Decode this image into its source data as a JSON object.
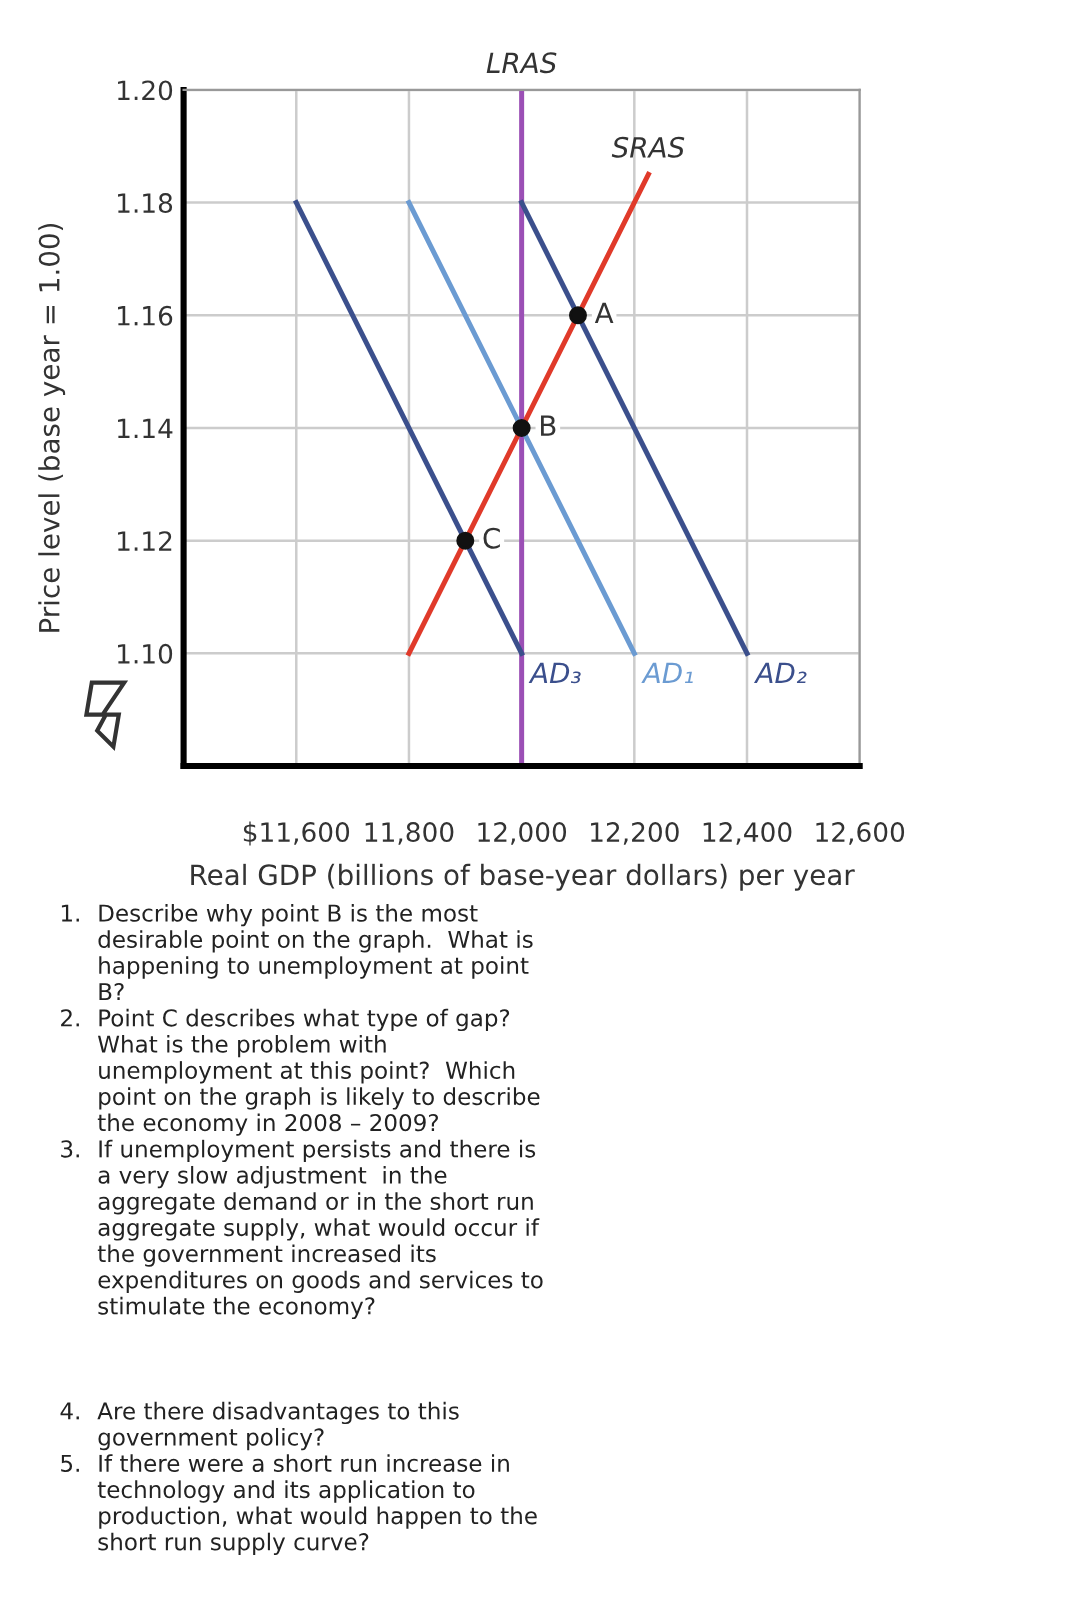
{
  "chart_data": {
    "type": "line",
    "xlabel": "Real GDP (billions of base-year dollars) per year",
    "ylabel": "Price level (base year = 1.00)",
    "xlim": [
      11400,
      12600
    ],
    "ylim": [
      1.08,
      1.2
    ],
    "xticks": [
      {
        "value": 11600,
        "label": "$11,600"
      },
      {
        "value": 11800,
        "label": "11,800"
      },
      {
        "value": 12000,
        "label": "12,000"
      },
      {
        "value": 12200,
        "label": "12,200"
      },
      {
        "value": 12400,
        "label": "12,400"
      },
      {
        "value": 12600,
        "label": "12,600"
      }
    ],
    "yticks": [
      {
        "value": 1.1,
        "label": "1.10"
      },
      1.12,
      1.14,
      1.16,
      1.18,
      {
        "value": 1.2,
        "label": "1.20"
      }
    ],
    "grid": true,
    "legend": false,
    "series": [
      {
        "name": "AD₃",
        "color": "#3b4f8c",
        "x": [
          11600,
          12000
        ],
        "values": [
          1.18,
          1.1
        ]
      },
      {
        "name": "AD₁",
        "color": "#6b9bd2",
        "x": [
          11800,
          12200
        ],
        "values": [
          1.18,
          1.1
        ]
      },
      {
        "name": "AD₂",
        "color": "#3b4f8c",
        "x": [
          12000,
          12400
        ],
        "values": [
          1.18,
          1.1
        ]
      },
      {
        "name": "SRAS",
        "color": "#e03a2a",
        "x": [
          11800,
          12225
        ],
        "values": [
          1.1,
          1.185
        ]
      },
      {
        "type": "scatter",
        "color": "#111111",
        "marker": "circle",
        "x": [
          12100,
          12000,
          11900
        ],
        "values": [
          1.16,
          1.14,
          1.12
        ]
      }
    ],
    "ref_lines": [
      {
        "axis": "x",
        "value": 12000,
        "label": "LRAS",
        "color": "#9b4fb5"
      }
    ],
    "annotations": [
      {
        "text": "A",
        "x": 12100,
        "y": 1.16
      },
      {
        "text": "B",
        "x": 12000,
        "y": 1.14
      },
      {
        "text": "C",
        "x": 11900,
        "y": 1.12
      },
      "1. Describe why point B is the most\ndesirable point on the graph.  What is\nhappening to unemployment at point\nB?",
      "2. Point C describes what type of gap?\nWhat is the problem with\nunemployment at this point?  Which\npoint on the graph is likely to describe\nthe economy in 2008 – 2009?",
      "3. If unemployment persists and there is\na very slow adjustment  in the\naggregate demand or in the short run\naggregate supply, what would occur if\nthe government increased its\nexpenditures on goods and services to\nstimulate the economy?",
      "4. Are there disadvantages to this\ngovernment policy?",
      "5. If there were a short run increase in\ntechnology and its application to\nproduction, what would happen to the\nshort run supply curve?"
    ]
  }
}
